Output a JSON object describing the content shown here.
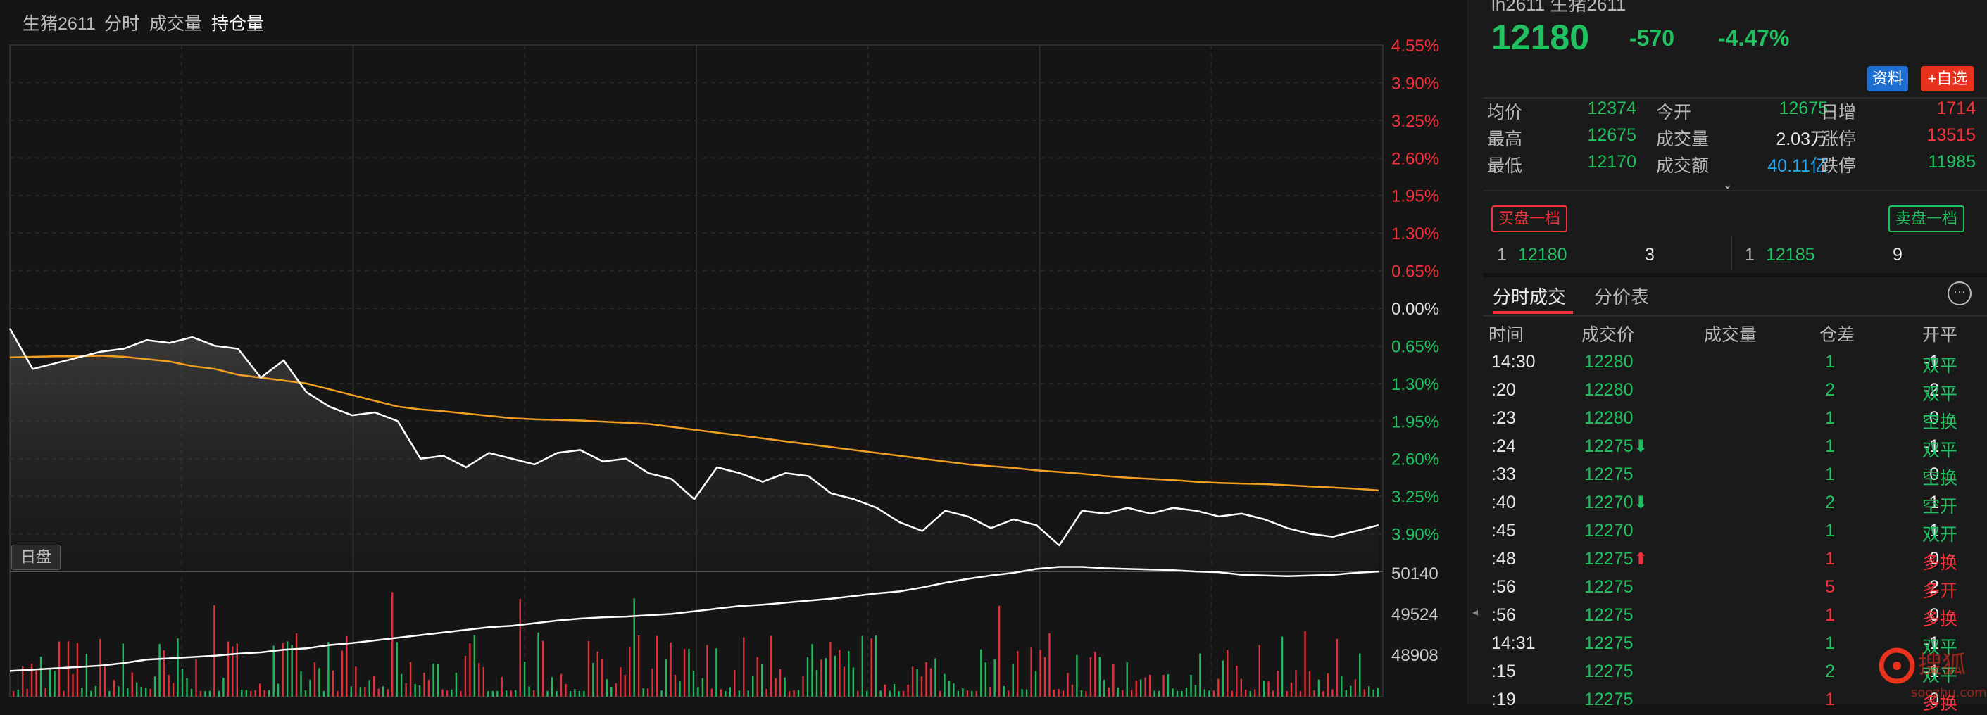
{
  "tabs": [
    "生猪2611",
    "分时",
    "成交量",
    "持仓量"
  ],
  "active_tab": 3,
  "price_axis": {
    "upper_labels": [
      "4.55%",
      "3.90%",
      "3.25%",
      "2.60%",
      "1.95%",
      "1.30%",
      "0.65%"
    ],
    "zero_label": "0.00%",
    "lower_labels": [
      "0.65%",
      "1.30%",
      "1.95%",
      "2.60%",
      "3.25%",
      "3.90%"
    ]
  },
  "oi_axis_labels": [
    "50140",
    "49524",
    "48908"
  ],
  "session_badge": "日盘",
  "header": {
    "partial_title": "lh2611  生猪2611",
    "price": "12180",
    "change": "-570",
    "change_pct": "-4.47%",
    "btn_info": "资料",
    "btn_watch": "+自选"
  },
  "stats": [
    {
      "label": "均价",
      "value": "12374",
      "vclass": "green"
    },
    {
      "label": "今开",
      "value": "12675",
      "vclass": "green"
    },
    {
      "label": "日增",
      "value": "1714",
      "vclass": "red"
    },
    {
      "label": "最高",
      "value": "12675",
      "vclass": "green"
    },
    {
      "label": "成交量",
      "value": "2.03万",
      "vclass": "white"
    },
    {
      "label": "涨停",
      "value": "13515",
      "vclass": "red"
    },
    {
      "label": "最低",
      "value": "12170",
      "vclass": "green"
    },
    {
      "label": "成交额",
      "value": "40.11亿",
      "vclass": "cyan"
    },
    {
      "label": "跌停",
      "value": "11985",
      "vclass": "green"
    }
  ],
  "order_book": {
    "bid_label": "买盘一档",
    "ask_label": "卖盘一档",
    "bid": {
      "level": "1",
      "price": "12180",
      "qty": "3"
    },
    "ask": {
      "level": "1",
      "price": "12185",
      "qty": "9"
    }
  },
  "trade_tabs": [
    "分时成交",
    "分价表"
  ],
  "trade_headers": [
    "时间",
    "成交价",
    "成交量",
    "仓差",
    "开平"
  ],
  "trades": [
    {
      "time": "14:30",
      "price": "12280",
      "arrow": "",
      "vol": "1",
      "vcls": "green",
      "diff": "-1",
      "type": "双平",
      "tcls": "green"
    },
    {
      "time": ":20",
      "price": "12280",
      "arrow": "",
      "vol": "2",
      "vcls": "green",
      "diff": "-2",
      "type": "双平",
      "tcls": "green"
    },
    {
      "time": ":23",
      "price": "12280",
      "arrow": "",
      "vol": "1",
      "vcls": "green",
      "diff": "0",
      "type": "空换",
      "tcls": "green"
    },
    {
      "time": ":24",
      "price": "12275",
      "arrow": "⬇",
      "vol": "1",
      "vcls": "green",
      "diff": "-1",
      "type": "双平",
      "tcls": "green"
    },
    {
      "time": ":33",
      "price": "12275",
      "arrow": "",
      "vol": "1",
      "vcls": "green",
      "diff": "0",
      "type": "空换",
      "tcls": "green"
    },
    {
      "time": ":40",
      "price": "12270",
      "arrow": "⬇",
      "vol": "2",
      "vcls": "green",
      "diff": "1",
      "type": "空开",
      "tcls": "green"
    },
    {
      "time": ":45",
      "price": "12270",
      "arrow": "",
      "vol": "1",
      "vcls": "green",
      "diff": "1",
      "type": "双开",
      "tcls": "green"
    },
    {
      "time": ":48",
      "price": "12275",
      "arrow": "⬆",
      "vol": "1",
      "vcls": "red",
      "diff": "0",
      "type": "多换",
      "tcls": "red"
    },
    {
      "time": ":56",
      "price": "12275",
      "arrow": "",
      "vol": "5",
      "vcls": "red",
      "diff": "2",
      "type": "多开",
      "tcls": "red"
    },
    {
      "time": ":56",
      "price": "12275",
      "arrow": "",
      "vol": "1",
      "vcls": "red",
      "diff": "0",
      "type": "多换",
      "tcls": "red"
    },
    {
      "time": "14:31",
      "price": "12275",
      "arrow": "",
      "vol": "1",
      "vcls": "green",
      "diff": "-1",
      "type": "双平",
      "tcls": "green"
    },
    {
      "time": ":15",
      "price": "12275",
      "arrow": "",
      "vol": "2",
      "vcls": "green",
      "diff": "-1",
      "type": "双平",
      "tcls": "green"
    },
    {
      "time": ":19",
      "price": "12275",
      "arrow": "",
      "vol": "1",
      "vcls": "red",
      "diff": "0",
      "type": "多换",
      "tcls": "red"
    }
  ],
  "watermark": {
    "main": "搜狐",
    "sub": "soozhu.com"
  },
  "chart_data": {
    "type": "line",
    "series": [
      {
        "values": [
          -0.35,
          -1.05,
          -0.95,
          -0.85,
          -0.75,
          -0.7,
          -0.55,
          -0.6,
          -0.5,
          -0.65,
          -0.7,
          -1.2,
          -0.9,
          -1.45,
          -1.7,
          -1.85,
          -1.8,
          -1.95,
          -2.6,
          -2.55,
          -2.75,
          -2.5,
          -2.6,
          -2.7,
          -2.5,
          -2.45,
          -2.65,
          -2.6,
          -2.85,
          -2.95,
          -3.3,
          -2.75,
          -2.85,
          -3.0,
          -2.85,
          -2.9,
          -3.2,
          -3.3,
          -3.45,
          -3.7,
          -3.85,
          -3.5,
          -3.6,
          -3.8,
          -3.65,
          -3.75,
          -4.1,
          -3.5,
          -3.55,
          -3.45,
          -3.55,
          -3.45,
          -3.5,
          -3.6,
          -3.55,
          -3.65,
          -3.8,
          -3.9,
          -3.95,
          -3.85,
          -3.75
        ]
      },
      {
        "values": [
          -0.85,
          -0.84,
          -0.83,
          -0.83,
          -0.82,
          -0.84,
          -0.88,
          -0.92,
          -1.0,
          -1.05,
          -1.15,
          -1.2,
          -1.25,
          -1.3,
          -1.4,
          -1.5,
          -1.6,
          -1.7,
          -1.75,
          -1.78,
          -1.82,
          -1.86,
          -1.9,
          -1.92,
          -1.93,
          -1.94,
          -1.96,
          -1.98,
          -2.0,
          -2.05,
          -2.1,
          -2.15,
          -2.2,
          -2.25,
          -2.3,
          -2.35,
          -2.4,
          -2.45,
          -2.5,
          -2.55,
          -2.6,
          -2.65,
          -2.7,
          -2.73,
          -2.76,
          -2.8,
          -2.83,
          -2.86,
          -2.9,
          -2.93,
          -2.95,
          -2.97,
          -3.0,
          -3.02,
          -3.03,
          -3.04,
          -3.06,
          -3.08,
          -3.1,
          -3.12,
          -3.15
        ]
      },
      {
        "values": [
          48660,
          48680,
          48700,
          48720,
          48740,
          48780,
          48830,
          48850,
          48870,
          48890,
          48920,
          48940,
          48980,
          49000,
          49050,
          49080,
          49120,
          49160,
          49200,
          49240,
          49280,
          49320,
          49340,
          49380,
          49420,
          49450,
          49470,
          49480,
          49500,
          49520,
          49560,
          49600,
          49640,
          49660,
          49690,
          49720,
          49750,
          49790,
          49830,
          49860,
          49920,
          49990,
          50050,
          50100,
          50140,
          50200,
          50230,
          50230,
          50210,
          50200,
          50190,
          50180,
          50160,
          50150,
          50110,
          50100,
          50090,
          50100,
          50110,
          50140,
          50160
        ]
      }
    ],
    "y_pct_range": [
      -4.55,
      4.55
    ],
    "oi_axis_ticks": [
      50140,
      49524,
      48908
    ],
    "grid": true
  }
}
